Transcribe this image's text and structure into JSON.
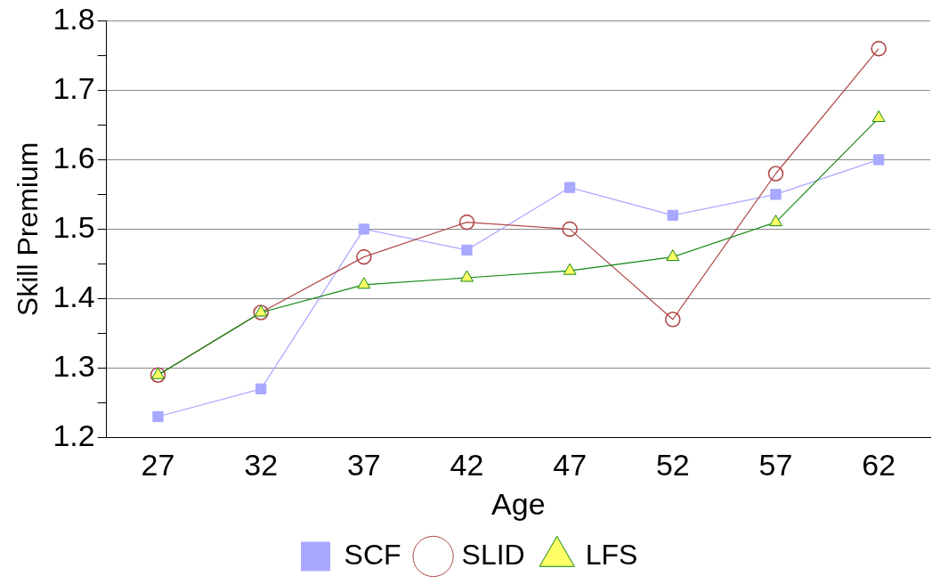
{
  "chart_data": {
    "type": "line",
    "xlabel": "Age",
    "ylabel": "Skill Premium",
    "categories": [
      "27",
      "32",
      "37",
      "42",
      "47",
      "52",
      "57",
      "62"
    ],
    "series": [
      {
        "name": "SCF",
        "color": "#a8a8ff",
        "marker": "square",
        "values": [
          1.23,
          1.27,
          1.5,
          1.47,
          1.56,
          1.52,
          1.55,
          1.6
        ]
      },
      {
        "name": "SLID",
        "color": "#b04848",
        "marker": "circle",
        "values": [
          1.29,
          1.38,
          1.46,
          1.51,
          1.5,
          1.37,
          1.58,
          1.76
        ]
      },
      {
        "name": "LFS",
        "color": "#118811",
        "marker": "triangle",
        "values": [
          1.29,
          1.38,
          1.42,
          1.43,
          1.44,
          1.46,
          1.51,
          1.66
        ]
      }
    ],
    "ylim": [
      1.2,
      1.8
    ],
    "yticks": [
      1.2,
      {
        "value": 1.25,
        "label": null
      },
      1.3,
      {
        "value": 1.35,
        "label": null
      },
      1.4,
      {
        "value": 1.45,
        "label": null
      },
      1.5,
      {
        "value": 1.55,
        "label": null
      },
      1.6,
      {
        "value": 1.65,
        "label": null
      },
      1.7,
      {
        "value": 1.75,
        "label": null
      },
      1.8
    ],
    "grid": "y",
    "legend": "bottom",
    "line_style": "solid"
  }
}
